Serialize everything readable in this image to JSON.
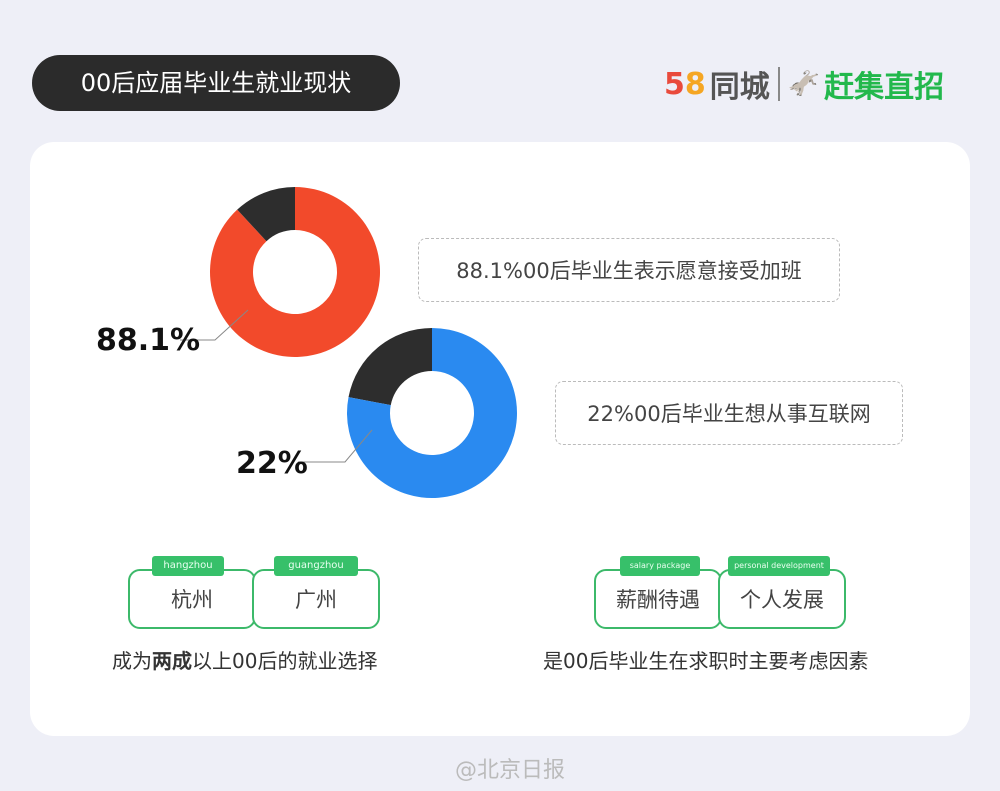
{
  "header": {
    "title": "00后应届毕业生就业现状"
  },
  "logo": {
    "brand1_digits": [
      "5",
      "8"
    ],
    "brand1_name": "同城",
    "brand2_name": "赶集直招"
  },
  "chart_data": [
    {
      "type": "pie",
      "variant": "donut",
      "values": [
        88.1,
        11.9
      ],
      "colors": [
        "#f24a2b",
        "#2d2d2d"
      ],
      "data_label": "88.1%",
      "annotation": "88.1%00后毕业生表示愿意接受加班"
    },
    {
      "type": "pie",
      "variant": "donut",
      "values": [
        22,
        78
      ],
      "colors": [
        "#2d2d2d",
        "#2a8af0"
      ],
      "data_label": "22%",
      "annotation": "22%00后毕业生想从事互联网"
    }
  ],
  "cities": {
    "items": [
      {
        "tag": "hangzhou",
        "label": "杭州"
      },
      {
        "tag": "guangzhou",
        "label": "广州"
      }
    ],
    "caption_pre": "成为",
    "caption_bold": "两成",
    "caption_post": "以上00后的就业选择"
  },
  "factors": {
    "items": [
      {
        "tag": "salary package",
        "label": "薪酬待遇"
      },
      {
        "tag": "personal development",
        "label": "个人发展"
      }
    ],
    "caption": "是00后毕业生在求职时主要考虑因素"
  },
  "watermark": "@北京日报"
}
